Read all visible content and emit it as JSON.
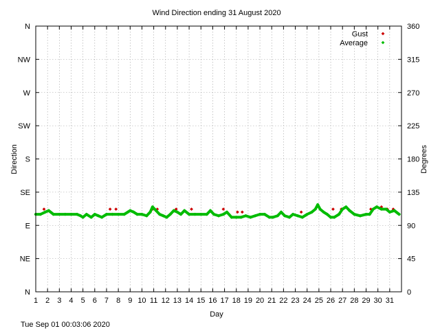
{
  "chart_data": {
    "type": "scatter",
    "title": "Wind Direction ending 31 August 2020",
    "xlabel": "Day",
    "ylabel_left": "Direction",
    "ylabel_right": "Degrees",
    "footer": "Tue Sep 01 00:03:06 2020",
    "xlim": [
      1,
      32
    ],
    "ylim": [
      0,
      360
    ],
    "grid": true,
    "legend_position": "top-right",
    "x_ticks": [
      "1",
      "2",
      "3",
      "4",
      "5",
      "6",
      "7",
      "8",
      "9",
      "10",
      "11",
      "12",
      "13",
      "14",
      "15",
      "16",
      "17",
      "18",
      "19",
      "20",
      "21",
      "22",
      "23",
      "24",
      "25",
      "26",
      "27",
      "28",
      "29",
      "30",
      "31"
    ],
    "y_ticks_left": [
      {
        "value": 0,
        "label": "N"
      },
      {
        "value": 45,
        "label": "NE"
      },
      {
        "value": 90,
        "label": "E"
      },
      {
        "value": 135,
        "label": "SE"
      },
      {
        "value": 180,
        "label": "S"
      },
      {
        "value": 225,
        "label": "SW"
      },
      {
        "value": 270,
        "label": "W"
      },
      {
        "value": 315,
        "label": "NW"
      },
      {
        "value": 360,
        "label": "N"
      }
    ],
    "y_ticks_right": [
      {
        "value": 0,
        "label": "0"
      },
      {
        "value": 45,
        "label": "45"
      },
      {
        "value": 90,
        "label": "90"
      },
      {
        "value": 135,
        "label": "135"
      },
      {
        "value": 180,
        "label": "180"
      },
      {
        "value": 225,
        "label": "225"
      },
      {
        "value": 270,
        "label": "270"
      },
      {
        "value": 315,
        "label": "315"
      },
      {
        "value": 360,
        "label": "360"
      }
    ],
    "series": [
      {
        "name": "Gust",
        "color": "#cc0000",
        "x": [
          1.7,
          7.3,
          7.8,
          10.9,
          11.3,
          12.9,
          14.2,
          16.9,
          18.1,
          18.5,
          23.5,
          26.2,
          26.9,
          29.4,
          29.9,
          30.3,
          30.8,
          31.3
        ],
        "y": [
          112,
          112,
          112,
          112,
          112,
          112,
          112,
          112,
          108,
          108,
          108,
          112,
          112,
          112,
          115,
          115,
          112,
          112
        ]
      },
      {
        "name": "Average",
        "color": "#00bb00",
        "x": [
          1.0,
          1.4,
          1.8,
          2.1,
          2.5,
          3.0,
          3.5,
          4.0,
          4.5,
          4.8,
          5.0,
          5.3,
          5.7,
          6.0,
          6.3,
          6.6,
          7.0,
          7.5,
          8.0,
          8.5,
          8.8,
          9.0,
          9.3,
          9.6,
          10.0,
          10.4,
          10.7,
          10.9,
          11.2,
          11.5,
          11.8,
          12.1,
          12.4,
          12.7,
          13.0,
          13.3,
          13.6,
          14.0,
          14.5,
          15.0,
          15.5,
          15.8,
          16.1,
          16.5,
          16.9,
          17.2,
          17.6,
          18.0,
          18.4,
          18.8,
          19.2,
          19.6,
          20.0,
          20.4,
          20.8,
          21.1,
          21.5,
          21.8,
          22.1,
          22.5,
          22.8,
          23.2,
          23.6,
          24.0,
          24.4,
          24.7,
          24.9,
          25.1,
          25.4,
          25.7,
          26.0,
          26.3,
          26.7,
          27.0,
          27.3,
          27.6,
          28.0,
          28.5,
          29.0,
          29.3,
          29.6,
          29.9,
          30.3,
          30.7,
          31.0,
          31.4,
          31.8
        ],
        "y": [
          105,
          105,
          108,
          110,
          105,
          105,
          105,
          105,
          105,
          103,
          101,
          105,
          101,
          105,
          103,
          101,
          105,
          105,
          105,
          105,
          108,
          110,
          108,
          105,
          105,
          103,
          108,
          115,
          110,
          105,
          103,
          101,
          105,
          110,
          108,
          105,
          110,
          105,
          105,
          105,
          105,
          110,
          105,
          103,
          105,
          108,
          101,
          101,
          101,
          103,
          101,
          103,
          105,
          105,
          101,
          101,
          103,
          108,
          103,
          101,
          105,
          103,
          101,
          105,
          108,
          112,
          118,
          112,
          108,
          105,
          101,
          101,
          105,
          112,
          115,
          110,
          105,
          103,
          105,
          105,
          112,
          115,
          112,
          112,
          108,
          110,
          105
        ]
      }
    ]
  }
}
